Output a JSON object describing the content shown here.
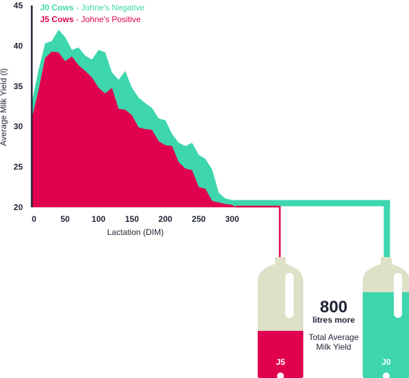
{
  "chart_data": {
    "type": "area",
    "title": "",
    "xlabel": "Lactation (DIM)",
    "ylabel": "Average Milk Yield (l)",
    "xlim": [
      0,
      300
    ],
    "ylim": [
      20,
      45
    ],
    "x_ticks": [
      "0",
      "50",
      "100",
      "150",
      "200",
      "250",
      "300"
    ],
    "y_ticks": [
      "20",
      "25",
      "30",
      "35",
      "40",
      "45"
    ],
    "grid": false,
    "legend_position": "top-left",
    "x": [
      0,
      10,
      20,
      30,
      40,
      50,
      60,
      70,
      80,
      90,
      100,
      110,
      120,
      130,
      140,
      150,
      160,
      170,
      180,
      190,
      200,
      210,
      220,
      230,
      240,
      250,
      260,
      270,
      280,
      290,
      300
    ],
    "series": [
      {
        "name": "J0 Cows",
        "name_suffix": " - Johne's Negative",
        "color": "#3dd6ad",
        "values": [
          33.0,
          37.0,
          40.3,
          40.6,
          42.0,
          41.1,
          39.5,
          39.8,
          38.8,
          38.3,
          39.5,
          39.2,
          36.7,
          35.8,
          36.9,
          34.8,
          33.6,
          32.9,
          32.3,
          31.0,
          30.8,
          29.1,
          28.0,
          27.6,
          28.0,
          26.5,
          26.0,
          24.7,
          21.8,
          21.1,
          20.9
        ]
      },
      {
        "name": "J5 Cows",
        "name_suffix": " - Johne's Positive",
        "color": "#e0024f",
        "values": [
          31.0,
          34.5,
          38.5,
          39.3,
          39.2,
          38.1,
          38.7,
          37.6,
          36.9,
          36.1,
          34.8,
          34.1,
          34.8,
          32.2,
          32.1,
          31.4,
          29.9,
          29.7,
          29.6,
          28.2,
          27.7,
          27.6,
          25.6,
          24.8,
          24.6,
          22.5,
          22.3,
          20.8,
          20.6,
          20.4,
          20.3
        ]
      }
    ]
  },
  "comparison": {
    "difference_value": "800",
    "difference_unit": "litres more",
    "caption_line1": "Total Average",
    "caption_line2": "Milk Yield",
    "bottle_left_label": "J5",
    "bottle_left_fill_fraction": 0.39,
    "bottle_right_label": "J0",
    "bottle_right_fill_fraction": 0.71
  },
  "colors": {
    "j0": "#3dd6ad",
    "j5": "#e0024f",
    "bottle": "#dfe0c8",
    "axis": "#1f2433"
  }
}
